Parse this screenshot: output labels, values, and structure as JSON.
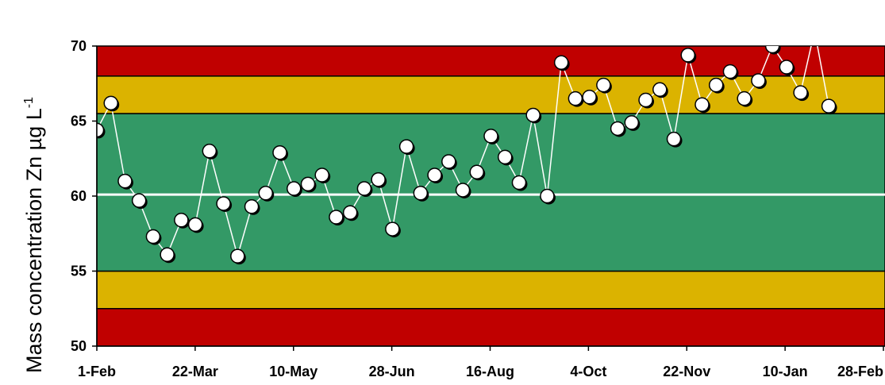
{
  "chart_data": {
    "type": "scatter",
    "title": "",
    "ylabel": "Mass concentration Zn µg L",
    "ylabel_superscript": "-1",
    "ylim": [
      50,
      70
    ],
    "xlim": [
      "2010-02-01",
      "2011-02-28"
    ],
    "x_tick_labels": [
      "1-Feb",
      "22-Mar",
      "10-May",
      "28-Jun",
      "16-Aug",
      "4-Oct",
      "22-Nov",
      "10-Jan",
      "28-Feb"
    ],
    "y_tick_labels": [
      "50",
      "55",
      "60",
      "65",
      "70"
    ],
    "bands": [
      {
        "from": 50,
        "to": 52.5,
        "color": "#c00000"
      },
      {
        "from": 52.5,
        "to": 55.0,
        "color": "#dbb300"
      },
      {
        "from": 55.0,
        "to": 65.5,
        "color": "#339966"
      },
      {
        "from": 65.5,
        "to": 68.0,
        "color": "#dbb300"
      },
      {
        "from": 68.0,
        "to": 70,
        "color": "#c00000"
      }
    ],
    "center_line": 60.1,
    "center_line_color": "#ffffff",
    "grid": false,
    "series": [
      {
        "marker_color": "#ffffff",
        "line_color": "#ffffff",
        "x": [
          "2010-02-01",
          "2010-02-08",
          "2010-02-15",
          "2010-02-22",
          "2010-03-01",
          "2010-03-08",
          "2010-03-15",
          "2010-03-22",
          "2010-03-29",
          "2010-04-05",
          "2010-04-12",
          "2010-04-19",
          "2010-04-26",
          "2010-05-03",
          "2010-05-10",
          "2010-05-17",
          "2010-05-24",
          "2010-05-31",
          "2010-06-07",
          "2010-06-14",
          "2010-06-21",
          "2010-06-28",
          "2010-07-05",
          "2010-07-12",
          "2010-07-19",
          "2010-07-26",
          "2010-08-02",
          "2010-08-09",
          "2010-08-16",
          "2010-08-23",
          "2010-08-30",
          "2010-09-06",
          "2010-09-13",
          "2010-09-20",
          "2010-09-27",
          "2010-10-04",
          "2010-10-11",
          "2010-10-18",
          "2010-10-25",
          "2010-11-01",
          "2010-11-08",
          "2010-11-15",
          "2010-11-22",
          "2010-11-29",
          "2010-12-06",
          "2010-12-13",
          "2010-12-20",
          "2010-12-27",
          "2011-01-03",
          "2011-01-10",
          "2011-01-17",
          "2011-01-24",
          "2011-01-31"
        ],
        "y": [
          64.4,
          66.2,
          61.0,
          59.7,
          57.3,
          56.1,
          58.4,
          58.1,
          63.0,
          59.5,
          56.0,
          59.3,
          60.2,
          62.9,
          60.5,
          60.8,
          61.4,
          58.6,
          58.9,
          60.5,
          61.1,
          57.8,
          63.3,
          60.2,
          61.4,
          62.3,
          60.4,
          61.6,
          64.0,
          62.6,
          60.9,
          65.4,
          60.0,
          68.9,
          66.5,
          66.6,
          67.4,
          64.5,
          64.9,
          66.4,
          67.1,
          63.8,
          69.4,
          66.1,
          67.4,
          68.3,
          66.5,
          67.7,
          70.0,
          68.6,
          66.9,
          71.0,
          66.0
        ]
      }
    ]
  }
}
